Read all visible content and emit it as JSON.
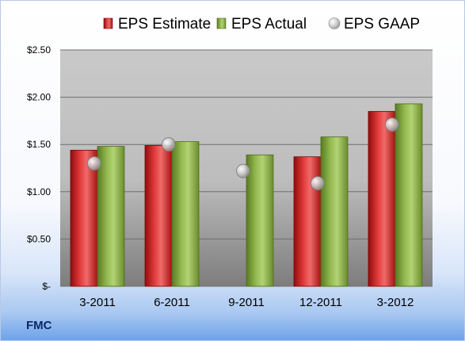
{
  "ticker": "FMC",
  "chart_data": {
    "type": "bar",
    "categories": [
      "3-2011",
      "6-2011",
      "9-2011",
      "12-2011",
      "3-2012"
    ],
    "series": [
      {
        "name": "EPS Estimate",
        "kind": "bar",
        "color": "#c81d1d",
        "values": [
          1.44,
          1.49,
          null,
          1.37,
          1.85
        ]
      },
      {
        "name": "EPS Actual",
        "kind": "bar",
        "color": "#7da33a",
        "values": [
          1.48,
          1.53,
          1.39,
          1.58,
          1.93
        ]
      },
      {
        "name": "EPS GAAP",
        "kind": "scatter",
        "color": "#b9b9b9",
        "values": [
          1.3,
          1.5,
          1.22,
          1.09,
          1.71
        ]
      }
    ],
    "ylim": [
      0,
      2.5
    ],
    "yticks": [
      0,
      0.5,
      1.0,
      1.5,
      2.0,
      2.5
    ],
    "ytick_labels": [
      "$-",
      "$0.50",
      "$1.00",
      "$1.50",
      "$2.00",
      "$2.50"
    ],
    "grid": true,
    "legend_position": "top"
  }
}
